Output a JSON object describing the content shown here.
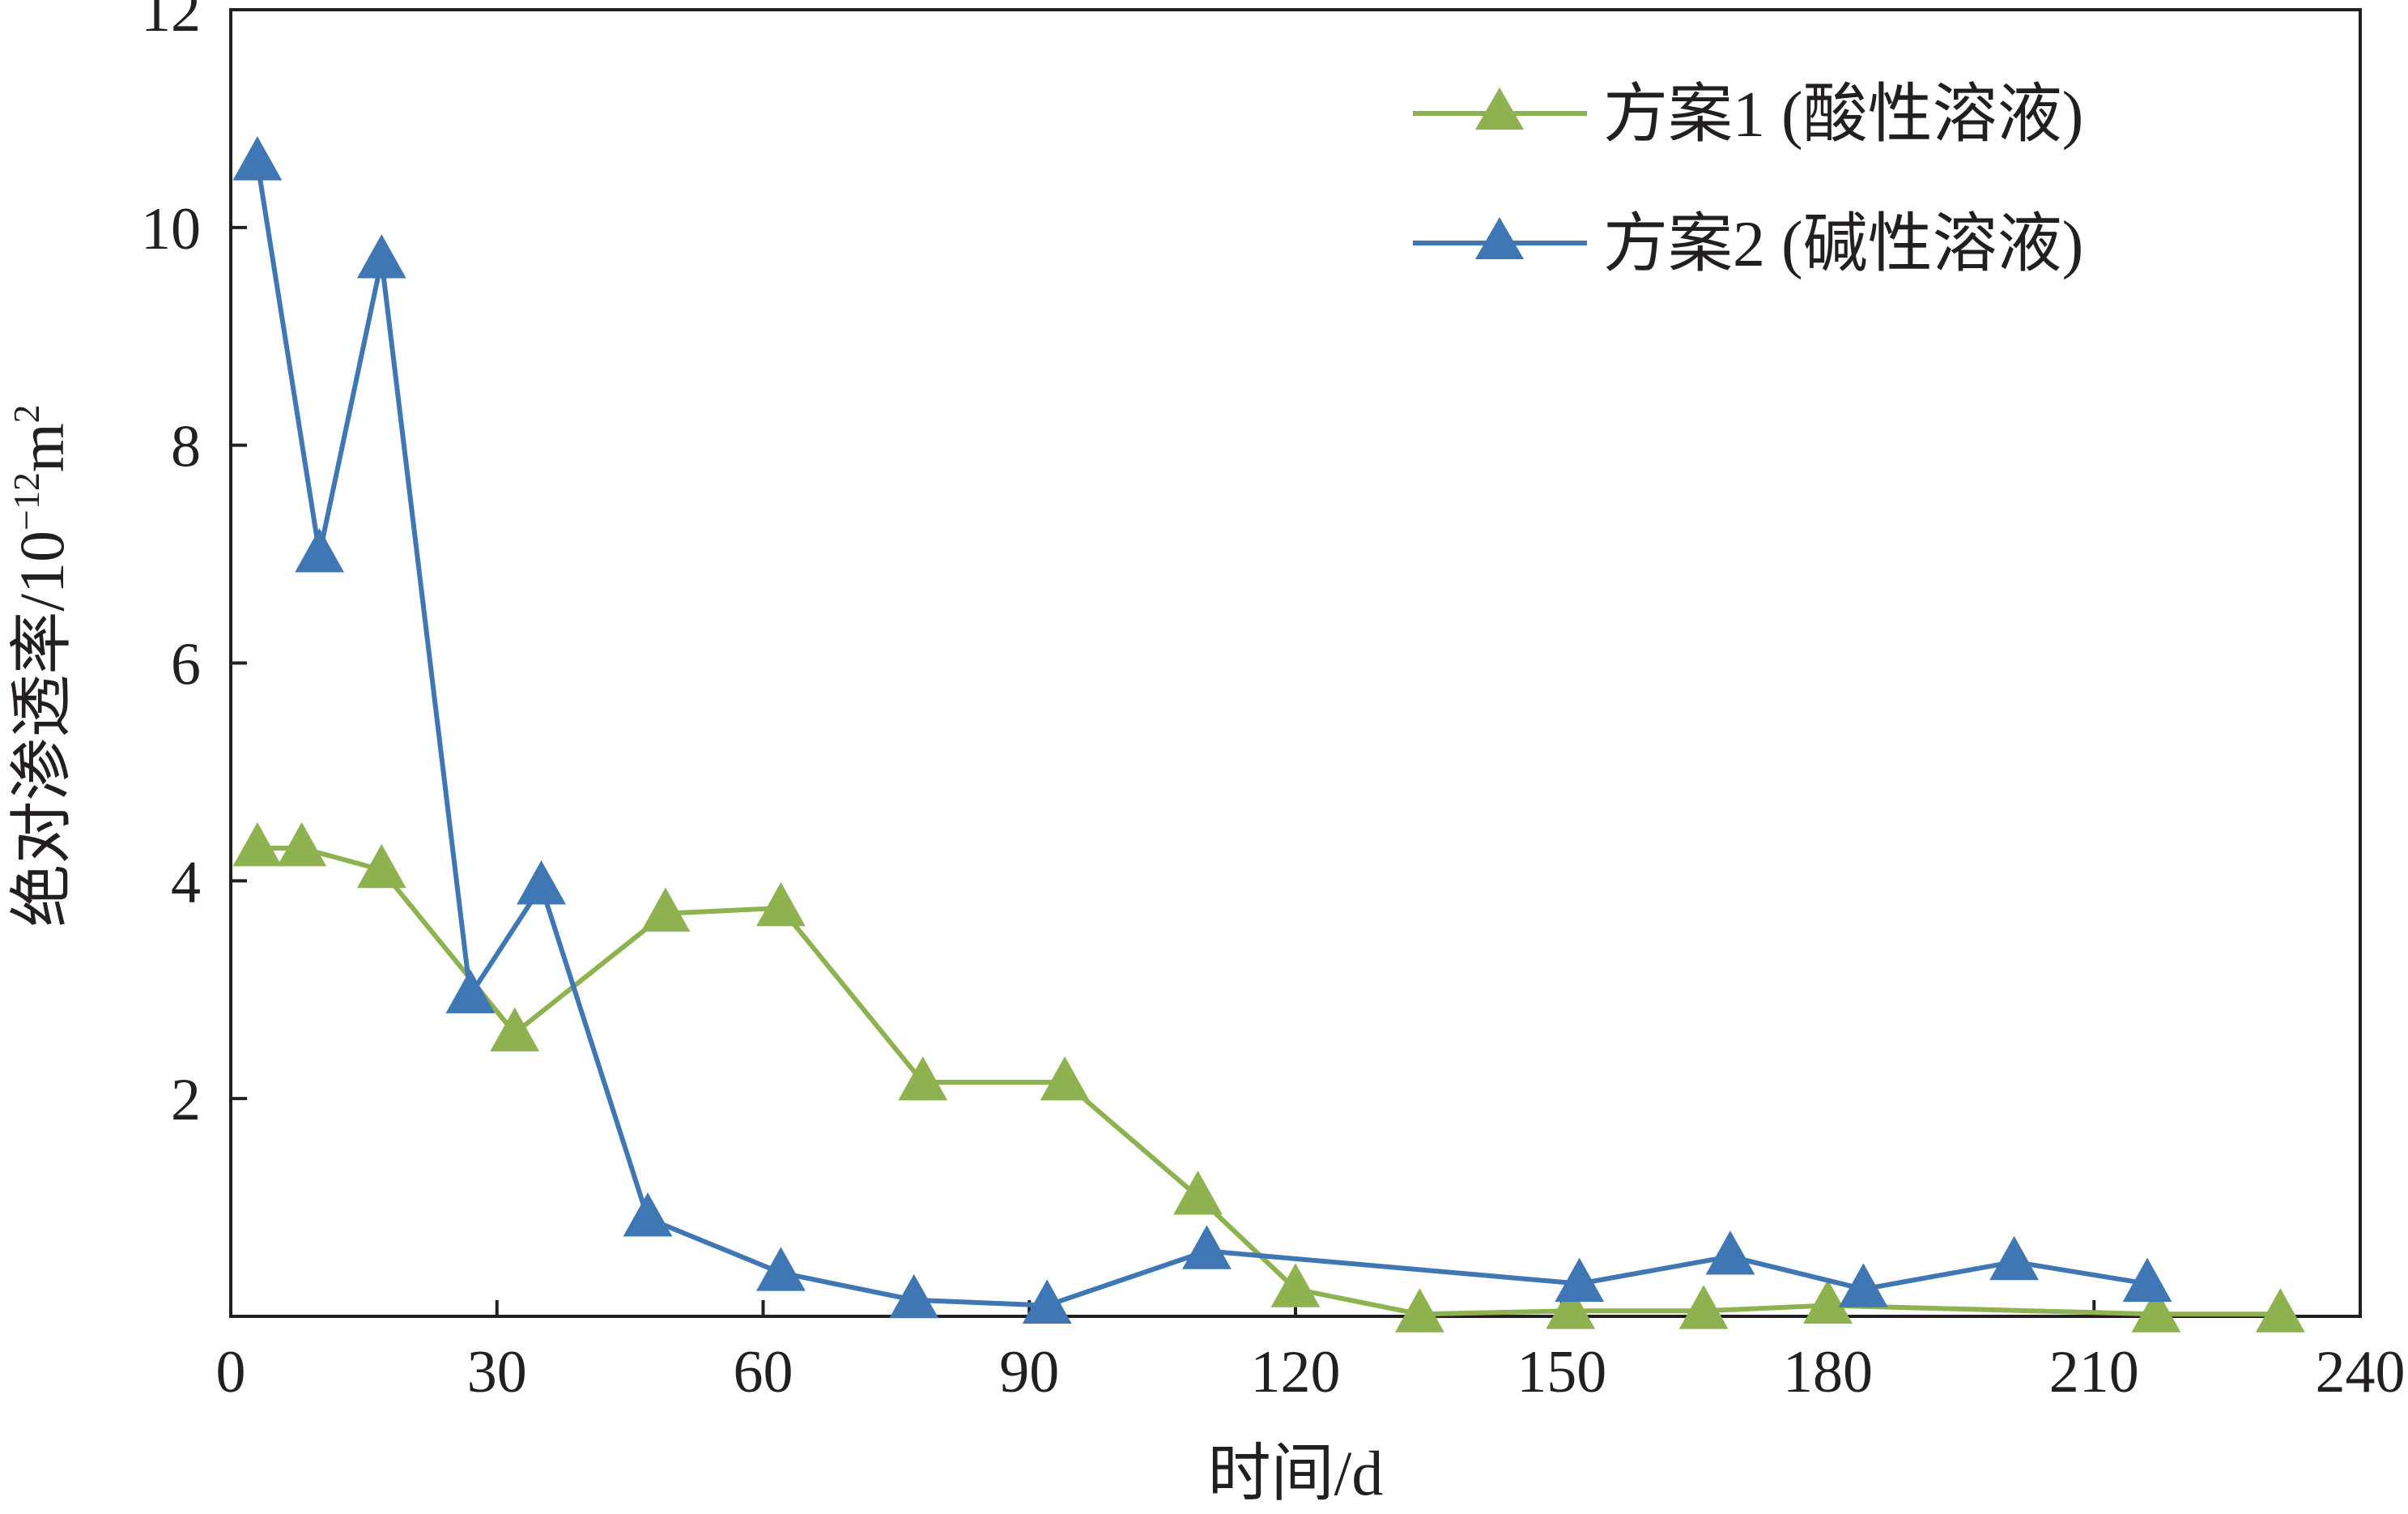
{
  "chart_data": {
    "type": "line",
    "xlabel": "时间/d",
    "ylabel": "绝对渗透率/10",
    "ylabel_sup1": "−12",
    "ylabel_mid": "m",
    "ylabel_sup2": "2",
    "xlim": [
      0,
      240
    ],
    "ylim": [
      0,
      12
    ],
    "x_ticks": [
      0,
      30,
      60,
      90,
      120,
      150,
      180,
      210,
      240
    ],
    "y_ticks": [
      2,
      4,
      6,
      8,
      10,
      12
    ],
    "x_tick_labels": [
      "0",
      "30",
      "60",
      "90",
      "120",
      "150",
      "180",
      "210",
      "240"
    ],
    "y_tick_labels": [
      "2",
      "4",
      "6",
      "8",
      "10",
      "12"
    ],
    "grid": false,
    "legend_position": "top-right",
    "series": [
      {
        "name": "方案1 (酸性溶液)",
        "color": "#8db24f",
        "marker": "triangle",
        "x": [
          3,
          8,
          17,
          32,
          49,
          62,
          78,
          94,
          109,
          120,
          134,
          151,
          166,
          180,
          217,
          231
        ],
        "y": [
          4.3,
          4.3,
          4.1,
          2.6,
          3.7,
          3.75,
          2.15,
          2.15,
          1.1,
          0.25,
          0.02,
          0.05,
          0.05,
          0.1,
          0.02,
          0.02
        ]
      },
      {
        "name": "方案2 (碱性溶液)",
        "color": "#3f76b4",
        "marker": "triangle",
        "x": [
          3,
          10,
          17,
          27,
          35,
          47,
          62,
          77,
          92,
          110,
          152,
          169,
          184,
          201,
          216
        ],
        "y": [
          10.6,
          7.0,
          9.7,
          2.95,
          3.95,
          0.9,
          0.4,
          0.15,
          0.1,
          0.6,
          0.3,
          0.55,
          0.25,
          0.5,
          0.3
        ]
      }
    ]
  }
}
